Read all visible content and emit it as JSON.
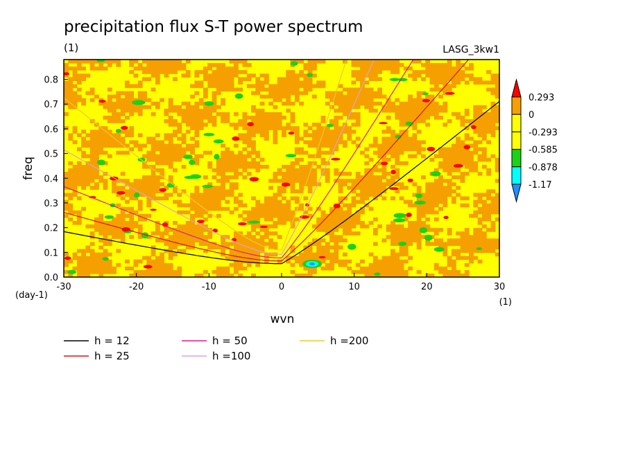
{
  "chart_data": {
    "type": "heatmap",
    "title": "precipitation flux S-T power spectrum",
    "subtitle": "(1)",
    "model_label": "LASG_3kw1",
    "xlabel": "wvn",
    "ylabel": "freq",
    "x_unit_label": "(1)",
    "y_unit_label": "(day-1)",
    "xlim": [
      -30,
      30
    ],
    "ylim": [
      0,
      0.88
    ],
    "x_ticks": [
      "-30",
      "-20",
      "-10",
      "0",
      "10",
      "20",
      "30"
    ],
    "y_ticks": [
      "0.0",
      "0.1",
      "0.2",
      "0.3",
      "0.4",
      "0.5",
      "0.6",
      "0.7",
      "0.8"
    ],
    "colorbar": {
      "labels": [
        "0.293",
        "0",
        "-0.293",
        "-0.585",
        "-0.878",
        "-1.17"
      ],
      "colors": [
        "#ff0000",
        "#f5a000",
        "#ffff00",
        "#19d219",
        "#00ffff",
        "#1e90ff"
      ]
    },
    "field_note_colors": {
      "background": "#ffff00",
      "dominant": "#f5a000"
    },
    "series": [
      {
        "name": "h = 12",
        "color": "#000000",
        "h": 12
      },
      {
        "name": "h = 25",
        "color": "#e01010",
        "h": 25
      },
      {
        "name": "h = 50",
        "color": "#e0188c",
        "h": 50
      },
      {
        "name": "h =100",
        "color": "#e0a0d0",
        "h": 100
      },
      {
        "name": "h =200",
        "color": "#f0c830",
        "h": 200
      }
    ]
  }
}
